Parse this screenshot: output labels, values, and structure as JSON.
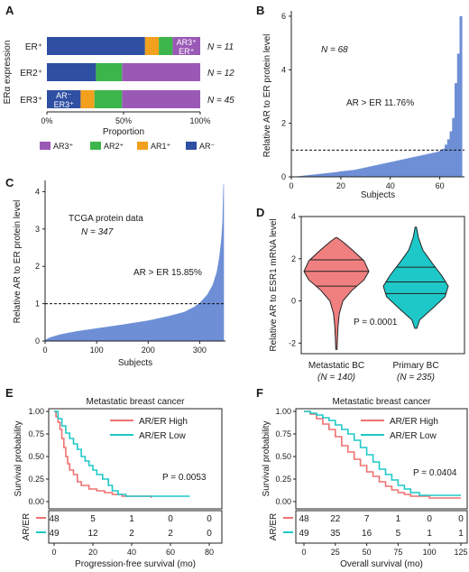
{
  "colors": {
    "ar3": "#9b59b6",
    "ar2": "#3cb54a",
    "ar1": "#f2a01e",
    "arneg": "#2f4fa3",
    "dist": "#6e8fd6",
    "violin_met": "#f08080",
    "violin_pri": "#1ec8c8",
    "km_high": "#f07070",
    "km_low": "#1ec8c8"
  },
  "chart_data": [
    {
      "panel": "A",
      "type": "bar",
      "orientation": "horizontal",
      "stacked": true,
      "ylabel": "ERα expression",
      "xlabel": "Proportion",
      "xticks": [
        "0%",
        "50%",
        "100%"
      ],
      "categories": [
        "ER⁺",
        "ER2⁺",
        "ER3⁺"
      ],
      "n_labels": [
        "N = 11",
        "N = 12",
        "N = 45"
      ],
      "series": [
        {
          "name": "AR⁻",
          "color_key": "arneg",
          "values": [
            0.64,
            0.32,
            0.22
          ]
        },
        {
          "name": "AR1⁺",
          "color_key": "ar1",
          "values": [
            0.09,
            0.0,
            0.09
          ]
        },
        {
          "name": "AR2⁺",
          "color_key": "ar2",
          "values": [
            0.09,
            0.17,
            0.18
          ]
        },
        {
          "name": "AR3⁺",
          "color_key": "ar3",
          "values": [
            0.18,
            0.51,
            0.51
          ]
        }
      ],
      "inbar_labels": [
        {
          "row": 0,
          "segment": 3,
          "lines": [
            "AR3⁺",
            "ER⁺"
          ]
        },
        {
          "row": 2,
          "segment": 0,
          "lines": [
            "AR⁻",
            "ER3⁺"
          ]
        }
      ],
      "legend": [
        "AR3⁺",
        "AR2⁺",
        "AR1⁺",
        "AR⁻"
      ]
    },
    {
      "panel": "B",
      "type": "bar",
      "ylabel": "Relative AR to ER protein level",
      "xlabel": "Subjects",
      "xlim": [
        0,
        70
      ],
      "ylim": [
        0,
        6.2
      ],
      "xticks": [
        0,
        20,
        40,
        60
      ],
      "yticks": [
        0,
        2,
        4,
        6
      ],
      "threshold": 1,
      "n_label": "N = 68",
      "annotation": "AR > ER 11.76%",
      "values": [
        0.01,
        0.02,
        0.03,
        0.04,
        0.05,
        0.06,
        0.07,
        0.08,
        0.09,
        0.1,
        0.11,
        0.12,
        0.13,
        0.14,
        0.15,
        0.16,
        0.17,
        0.18,
        0.2,
        0.21,
        0.22,
        0.23,
        0.24,
        0.25,
        0.26,
        0.28,
        0.3,
        0.32,
        0.34,
        0.36,
        0.38,
        0.4,
        0.42,
        0.44,
        0.46,
        0.48,
        0.5,
        0.52,
        0.54,
        0.56,
        0.58,
        0.6,
        0.62,
        0.64,
        0.66,
        0.68,
        0.7,
        0.72,
        0.74,
        0.76,
        0.78,
        0.8,
        0.82,
        0.84,
        0.86,
        0.88,
        0.9,
        0.92,
        0.95,
        0.98,
        1.05,
        1.2,
        1.4,
        1.7,
        2.2,
        3.5,
        4.6,
        6.0
      ]
    },
    {
      "panel": "C",
      "type": "area",
      "ylabel": "Relative AR to ER protein level",
      "xlabel": "Subjects",
      "xlim": [
        0,
        350
      ],
      "ylim": [
        0,
        4.3
      ],
      "xticks": [
        0,
        100,
        200,
        300
      ],
      "yticks": [
        0,
        1,
        2,
        3,
        4
      ],
      "threshold": 1,
      "title_text": "TCGA protein data",
      "n_label": "N = 347",
      "annotation": "AR > ER 15.85%",
      "points": [
        [
          0,
          0.03
        ],
        [
          10,
          0.1
        ],
        [
          30,
          0.18
        ],
        [
          60,
          0.26
        ],
        [
          100,
          0.34
        ],
        [
          150,
          0.44
        ],
        [
          200,
          0.55
        ],
        [
          240,
          0.67
        ],
        [
          270,
          0.78
        ],
        [
          290,
          0.92
        ],
        [
          300,
          1.02
        ],
        [
          315,
          1.25
        ],
        [
          325,
          1.5
        ],
        [
          333,
          1.85
        ],
        [
          338,
          2.25
        ],
        [
          342,
          2.75
        ],
        [
          344,
          3.2
        ],
        [
          345,
          3.7
        ],
        [
          346,
          4.2
        ],
        [
          347,
          4.2
        ],
        [
          347,
          0
        ]
      ]
    },
    {
      "panel": "D",
      "type": "violin",
      "ylabel": "Relative AR to ESR1 mRNA level",
      "ylim": [
        -2.5,
        4
      ],
      "yticks": [
        -2,
        0,
        2,
        4
      ],
      "p_label": "P = 0.0001",
      "groups": [
        {
          "name": "Metastatic BC",
          "n": "(N = 140)",
          "color_key": "violin_met",
          "q1": 0.7,
          "median": 1.4,
          "q3": 1.95,
          "min": -2.3,
          "max": 3.0,
          "profile": [
            [
              -2.3,
              0.02
            ],
            [
              -1.8,
              0.03
            ],
            [
              -1.2,
              0.05
            ],
            [
              -0.6,
              0.09
            ],
            [
              0,
              0.2
            ],
            [
              0.5,
              0.48
            ],
            [
              1.0,
              0.85
            ],
            [
              1.4,
              1.0
            ],
            [
              1.9,
              0.85
            ],
            [
              2.4,
              0.5
            ],
            [
              2.8,
              0.2
            ],
            [
              3.0,
              0.02
            ]
          ]
        },
        {
          "name": "Primary BC",
          "n": "(N = 235)",
          "color_key": "violin_pri",
          "q1": 0.35,
          "median": 0.9,
          "q3": 1.6,
          "min": -1.3,
          "max": 3.5,
          "profile": [
            [
              -1.3,
              0.03
            ],
            [
              -0.9,
              0.12
            ],
            [
              -0.3,
              0.55
            ],
            [
              0.2,
              0.9
            ],
            [
              0.7,
              1.0
            ],
            [
              1.2,
              0.8
            ],
            [
              1.8,
              0.5
            ],
            [
              2.4,
              0.22
            ],
            [
              3.0,
              0.08
            ],
            [
              3.5,
              0.02
            ]
          ]
        }
      ]
    },
    {
      "panel": "E",
      "type": "line",
      "step": true,
      "title": "Metastatic breast cancer",
      "ylabel": "Survival probability",
      "xlabel": "Progression-free survival (mo)",
      "xlim": [
        0,
        80
      ],
      "ylim": [
        0,
        1
      ],
      "xticks": [
        0,
        20,
        40,
        60,
        80
      ],
      "yticks": [
        "0.00",
        "0.25",
        "0.50",
        "0.75",
        "1.00"
      ],
      "p_label": "P = 0.0053",
      "series": [
        {
          "name": "AR/ER High",
          "color_key": "km_high",
          "points": [
            [
              0,
              1
            ],
            [
              1,
              0.94
            ],
            [
              2,
              0.88
            ],
            [
              3,
              0.8
            ],
            [
              4,
              0.7
            ],
            [
              5,
              0.6
            ],
            [
              6,
              0.5
            ],
            [
              7,
              0.42
            ],
            [
              8,
              0.35
            ],
            [
              10,
              0.3
            ],
            [
              12,
              0.22
            ],
            [
              14,
              0.18
            ],
            [
              18,
              0.14
            ],
            [
              22,
              0.12
            ],
            [
              26,
              0.1
            ],
            [
              30,
              0.08
            ],
            [
              35,
              0.06
            ],
            [
              50,
              0.04
            ]
          ]
        },
        {
          "name": "AR/ER Low",
          "color_key": "km_low",
          "points": [
            [
              0,
              1
            ],
            [
              2,
              0.92
            ],
            [
              4,
              0.84
            ],
            [
              6,
              0.76
            ],
            [
              8,
              0.7
            ],
            [
              10,
              0.64
            ],
            [
              12,
              0.58
            ],
            [
              14,
              0.5
            ],
            [
              16,
              0.45
            ],
            [
              18,
              0.4
            ],
            [
              20,
              0.35
            ],
            [
              22,
              0.3
            ],
            [
              25,
              0.25
            ],
            [
              28,
              0.18
            ],
            [
              30,
              0.12
            ],
            [
              33,
              0.08
            ],
            [
              37,
              0.06
            ],
            [
              70,
              0.06
            ]
          ]
        }
      ],
      "risk_table": {
        "label": "AR/ER",
        "ticks": [
          0,
          20,
          40,
          60,
          80
        ],
        "rows": [
          {
            "color_key": "km_high",
            "values": [
              "48",
              "5",
              "1",
              "0",
              "0"
            ]
          },
          {
            "color_key": "km_low",
            "values": [
              "49",
              "12",
              "2",
              "2",
              "0"
            ]
          }
        ]
      }
    },
    {
      "panel": "F",
      "type": "line",
      "step": true,
      "title": "Metastatic breast cancer",
      "ylabel": "Survival probability",
      "xlabel": "Overall survival (mo)",
      "xlim": [
        0,
        125
      ],
      "ylim": [
        0,
        1
      ],
      "xticks": [
        0,
        25,
        50,
        75,
        100,
        125
      ],
      "yticks": [
        "0.00",
        "0.25",
        "0.50",
        "0.75",
        "1.00"
      ],
      "p_label": "P = 0.0404",
      "series": [
        {
          "name": "AR/ER High",
          "color_key": "km_high",
          "points": [
            [
              0,
              1
            ],
            [
              5,
              0.97
            ],
            [
              10,
              0.92
            ],
            [
              15,
              0.86
            ],
            [
              20,
              0.8
            ],
            [
              25,
              0.72
            ],
            [
              30,
              0.62
            ],
            [
              35,
              0.55
            ],
            [
              40,
              0.47
            ],
            [
              45,
              0.4
            ],
            [
              50,
              0.33
            ],
            [
              55,
              0.28
            ],
            [
              60,
              0.22
            ],
            [
              65,
              0.17
            ],
            [
              70,
              0.13
            ],
            [
              75,
              0.1
            ],
            [
              80,
              0.08
            ],
            [
              85,
              0.06
            ],
            [
              100,
              0.04
            ],
            [
              125,
              0.04
            ]
          ]
        },
        {
          "name": "AR/ER Low",
          "color_key": "km_low",
          "points": [
            [
              0,
              1
            ],
            [
              5,
              0.98
            ],
            [
              10,
              0.96
            ],
            [
              15,
              0.93
            ],
            [
              20,
              0.9
            ],
            [
              25,
              0.85
            ],
            [
              30,
              0.8
            ],
            [
              35,
              0.75
            ],
            [
              40,
              0.68
            ],
            [
              45,
              0.6
            ],
            [
              50,
              0.52
            ],
            [
              55,
              0.44
            ],
            [
              60,
              0.36
            ],
            [
              65,
              0.3
            ],
            [
              70,
              0.24
            ],
            [
              75,
              0.18
            ],
            [
              80,
              0.14
            ],
            [
              85,
              0.1
            ],
            [
              92,
              0.07
            ],
            [
              125,
              0.07
            ]
          ]
        }
      ],
      "risk_table": {
        "label": "AR/ER",
        "ticks": [
          0,
          25,
          50,
          75,
          100,
          125
        ],
        "rows": [
          {
            "color_key": "km_high",
            "values": [
              "48",
              "22",
              "7",
              "1",
              "0",
              "0"
            ]
          },
          {
            "color_key": "km_low",
            "values": [
              "49",
              "35",
              "16",
              "5",
              "1",
              "1"
            ]
          }
        ]
      }
    }
  ]
}
